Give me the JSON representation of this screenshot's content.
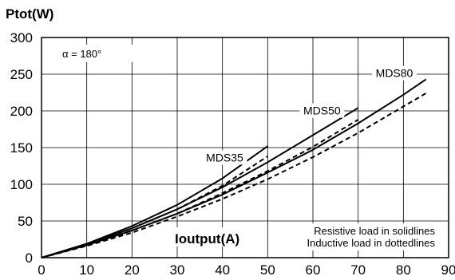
{
  "chart_data": {
    "type": "line",
    "ylabel": "Ptot(W)",
    "xlabel": "Ioutput(A)",
    "annotation": "α = 180°",
    "legend_lines": [
      "Resistive load in solidlines",
      "Inductive load in dottedlines"
    ],
    "xlim": [
      0,
      90
    ],
    "ylim": [
      0,
      300
    ],
    "x_ticks": [
      0,
      10,
      20,
      30,
      40,
      50,
      60,
      70,
      80,
      90
    ],
    "y_ticks": [
      0,
      50,
      100,
      150,
      200,
      250,
      300
    ],
    "grid": true,
    "series": [
      {
        "name": "MDS35",
        "style": "solid",
        "x": [
          0,
          10,
          20,
          30,
          40,
          50
        ],
        "y": [
          0,
          19,
          43,
          72,
          108,
          152
        ]
      },
      {
        "name": "MDS35",
        "style": "dashed",
        "x": [
          0,
          10,
          20,
          30,
          40,
          50
        ],
        "y": [
          0,
          18,
          40,
          66,
          98,
          138
        ]
      },
      {
        "name": "MDS50",
        "style": "solid",
        "x": [
          0,
          10,
          20,
          30,
          40,
          50,
          60,
          70
        ],
        "y": [
          0,
          18,
          40,
          66,
          96,
          130,
          167,
          204
        ]
      },
      {
        "name": "MDS50",
        "style": "dashed",
        "x": [
          0,
          10,
          20,
          30,
          40,
          50,
          60,
          70
        ],
        "y": [
          0,
          17,
          37,
          60,
          88,
          118,
          151,
          188
        ]
      },
      {
        "name": "MDS80",
        "style": "solid",
        "x": [
          0,
          10,
          20,
          30,
          40,
          50,
          60,
          70,
          80,
          85
        ],
        "y": [
          0,
          17,
          37,
          60,
          86,
          116,
          147,
          183,
          222,
          243
        ]
      },
      {
        "name": "MDS80",
        "style": "dashed",
        "x": [
          0,
          10,
          20,
          30,
          40,
          50,
          60,
          70,
          80,
          85
        ],
        "y": [
          0,
          16,
          34,
          56,
          80,
          107,
          137,
          170,
          206,
          224
        ]
      }
    ],
    "series_labels": [
      {
        "text": "MDS35",
        "x": 40.5,
        "y": 131
      },
      {
        "text": "MDS50",
        "x": 62,
        "y": 195
      },
      {
        "text": "MDS80",
        "x": 78,
        "y": 246
      }
    ]
  }
}
